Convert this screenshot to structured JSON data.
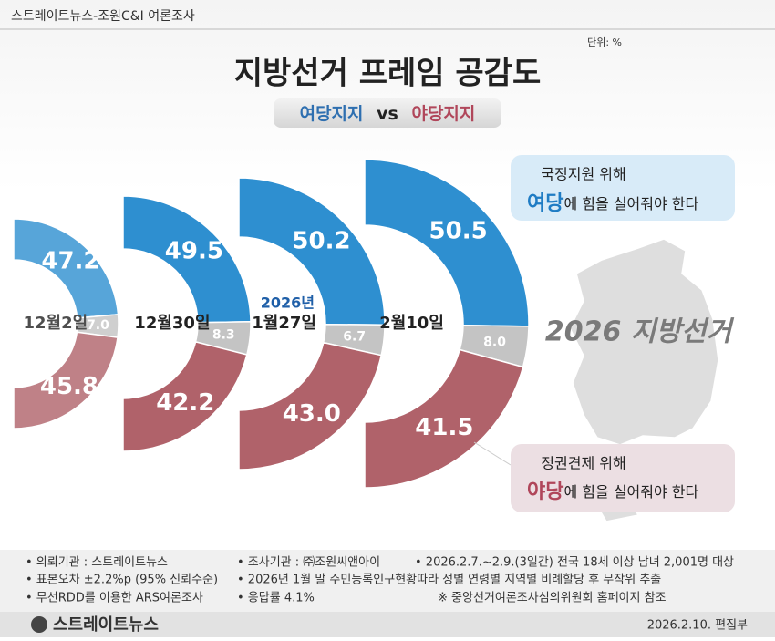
{
  "header": {
    "source": "스트레이트뉴스-조원C&I 여론조사",
    "unit": "단위: %",
    "title": "지방선거 프레임 공감도",
    "vs": "vs"
  },
  "chart_data": {
    "type": "half-donut",
    "categories": [
      "12월2일",
      "12월30일",
      "1월27일",
      "2월10일"
    ],
    "annotation": "2026년",
    "series": [
      {
        "name": "여당지지",
        "color": "#2e8fd0",
        "values": [
          47.2,
          49.5,
          50.2,
          50.5
        ]
      },
      {
        "color": "#c4c4c4",
        "values": [
          7.0,
          8.3,
          6.7,
          8.0
        ],
        "value_labels": [
          "7.0",
          "8.3",
          "6.7",
          "8.0"
        ]
      },
      {
        "name": "야당지지",
        "color": "#b0626a",
        "values": [
          45.8,
          42.2,
          43.0,
          41.5
        ],
        "value_labels": [
          "45.8",
          "42.2",
          "43.0",
          "41.5"
        ]
      }
    ]
  },
  "callouts": {
    "ruling": {
      "line1": "국정지원 위해",
      "party": "여당",
      "rest": "에 힘을 실어줘야 한다"
    },
    "opposition": {
      "line1": "정권견제 위해",
      "party": "야당",
      "rest": "에 힘을 실어줘야 한다"
    }
  },
  "map_label": "2026 지방선거",
  "footer": {
    "notes": [
      "• 의뢰기관 : 스트레이트뉴스",
      "• 조사기관 : ㈜조원씨앤아이",
      "• 2026.2.7.~2.9.(3일간) 전국 18세 이상 남녀 2,001명 대상",
      "• 표본오차 ±2.2%p (95% 신뢰수준)",
      "• 2026년 1월 말 주민등록인구현황따라 성별 연령별 지역별 비례할당 후 무작위 추출",
      "• 무선RDD를 이용한 ARS여론조사",
      "• 응답률 4.1%",
      "※ 중앙선거여론조사심의위원회 홈페이지 참조"
    ],
    "logo": "스트레이트뉴스",
    "date": "2026.2.10.  편집부"
  }
}
